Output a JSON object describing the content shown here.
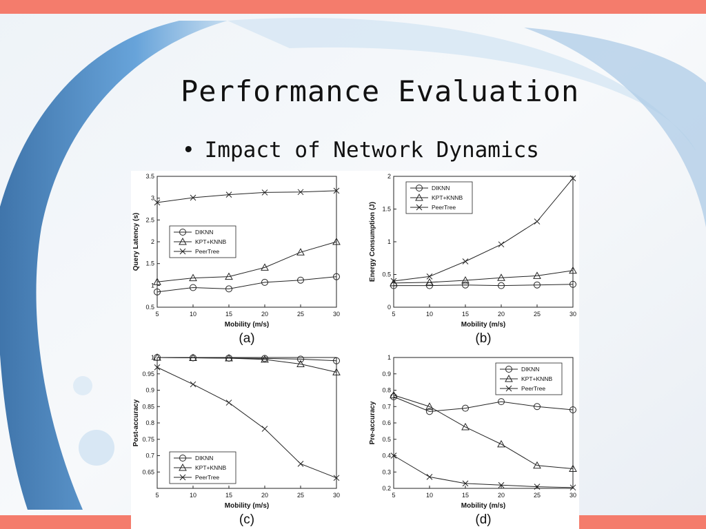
{
  "slide": {
    "title": "Performance Evaluation",
    "bullet_marker": "•",
    "bullet": "Impact of Network Dynamics"
  },
  "colors": {
    "accent_stripe": "#f47c6c",
    "line": "#222222"
  },
  "chart_data": [
    {
      "type": "line",
      "caption": "(a)",
      "xlabel": "Mobility (m/s)",
      "ylabel": "Query Latency (s)",
      "x": [
        5,
        10,
        15,
        20,
        25,
        30
      ],
      "xticks": [
        "5",
        "10",
        "15",
        "20",
        "25",
        "30"
      ],
      "xlim": [
        5,
        30
      ],
      "ylim": [
        0.5,
        3.5
      ],
      "yticks": [
        0.5,
        1,
        1.5,
        2,
        2.5,
        3,
        3.5
      ],
      "ytick_labels": [
        "0.5",
        "1",
        "1.5",
        "2",
        "2.5",
        "3",
        "3.5"
      ],
      "legend_position": "left-middle",
      "series": [
        {
          "name": "DIKNN",
          "marker": "circle",
          "values": [
            0.85,
            0.95,
            0.92,
            1.07,
            1.12,
            1.2
          ]
        },
        {
          "name": "KPT+KNNB",
          "marker": "triangle",
          "values": [
            1.08,
            1.17,
            1.2,
            1.41,
            1.76,
            2.0
          ]
        },
        {
          "name": "PeerTree",
          "marker": "x",
          "values": [
            2.9,
            3.01,
            3.08,
            3.13,
            3.14,
            3.17
          ]
        }
      ]
    },
    {
      "type": "line",
      "caption": "(b)",
      "xlabel": "Mobility (m/s)",
      "ylabel": "Energy Consumption (J)",
      "x": [
        5,
        10,
        15,
        20,
        25,
        30
      ],
      "xticks": [
        "5",
        "10",
        "15",
        "20",
        "25",
        "30"
      ],
      "xlim": [
        5,
        30
      ],
      "ylim": [
        0,
        2
      ],
      "yticks": [
        0,
        0.5,
        1,
        1.5,
        2
      ],
      "ytick_labels": [
        "0",
        "0.5",
        "1",
        "1.5",
        "2"
      ],
      "legend_position": "top-left",
      "series": [
        {
          "name": "DIKNN",
          "marker": "circle",
          "values": [
            0.33,
            0.33,
            0.34,
            0.33,
            0.34,
            0.35
          ]
        },
        {
          "name": "KPT+KNNB",
          "marker": "triangle",
          "values": [
            0.37,
            0.38,
            0.41,
            0.45,
            0.48,
            0.56
          ]
        },
        {
          "name": "PeerTree",
          "marker": "x",
          "values": [
            0.4,
            0.47,
            0.7,
            0.96,
            1.31,
            1.97
          ]
        }
      ]
    },
    {
      "type": "line",
      "caption": "(c)",
      "xlabel": "Mobility (m/s)",
      "ylabel": "Post-accuracy",
      "x": [
        5,
        10,
        15,
        20,
        25,
        30
      ],
      "xticks": [
        "5",
        "10",
        "15",
        "20",
        "25",
        "30"
      ],
      "xlim": [
        5,
        30
      ],
      "ylim": [
        0.6,
        1.0
      ],
      "yticks": [
        0.65,
        0.7,
        0.75,
        0.8,
        0.85,
        0.9,
        0.95,
        1
      ],
      "ytick_labels": [
        "0.65",
        "0.7",
        "0.75",
        "0.8",
        "0.85",
        "0.9",
        "0.95",
        "1"
      ],
      "legend_position": "bottom-left",
      "series": [
        {
          "name": "DIKNN",
          "marker": "circle",
          "values": [
            1.0,
            0.999,
            0.998,
            0.997,
            0.995,
            0.99
          ]
        },
        {
          "name": "KPT+KNNB",
          "marker": "triangle",
          "values": [
            1.0,
            0.999,
            0.998,
            0.994,
            0.98,
            0.955
          ]
        },
        {
          "name": "PeerTree",
          "marker": "x",
          "values": [
            0.97,
            0.918,
            0.862,
            0.782,
            0.675,
            0.632
          ]
        }
      ]
    },
    {
      "type": "line",
      "caption": "(d)",
      "xlabel": "Mobility (m/s)",
      "ylabel": "Pre-accuracy",
      "x": [
        5,
        10,
        15,
        20,
        25,
        30
      ],
      "xticks": [
        "5",
        "10",
        "15",
        "20",
        "25",
        "30"
      ],
      "xlim": [
        5,
        30
      ],
      "ylim": [
        0.2,
        1.0
      ],
      "yticks": [
        0.2,
        0.3,
        0.4,
        0.5,
        0.6,
        0.7,
        0.8,
        0.9,
        1
      ],
      "ytick_labels": [
        "0.2",
        "0.3",
        "0.4",
        "0.5",
        "0.6",
        "0.7",
        "0.8",
        "0.9",
        "1"
      ],
      "legend_position": "top-right",
      "series": [
        {
          "name": "DIKNN",
          "marker": "circle",
          "values": [
            0.76,
            0.67,
            0.69,
            0.73,
            0.7,
            0.68
          ]
        },
        {
          "name": "KPT+KNNB",
          "marker": "triangle",
          "values": [
            0.77,
            0.7,
            0.575,
            0.47,
            0.34,
            0.32
          ]
        },
        {
          "name": "PeerTree",
          "marker": "x",
          "values": [
            0.4,
            0.27,
            0.23,
            0.22,
            0.21,
            0.205
          ]
        }
      ]
    }
  ]
}
